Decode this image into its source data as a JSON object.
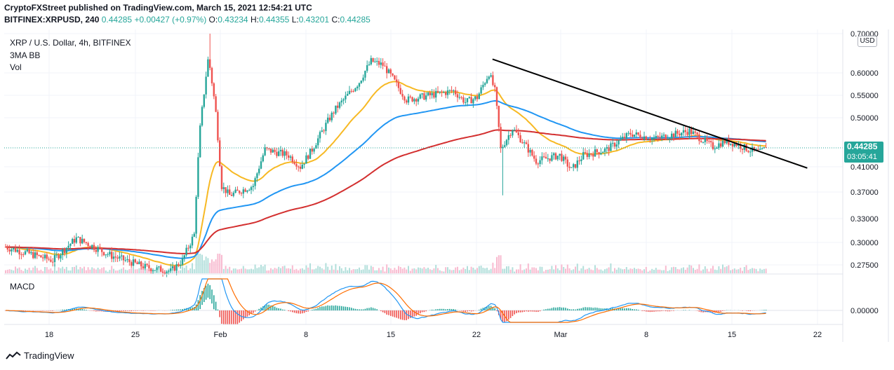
{
  "header": {
    "publisher_line": "CryptoFXStreet published on TradingView.com, March 15, 2021 12:54:21 UTC",
    "symbol": "BITFINEX:XRPUSD, 240",
    "last": "0.44285",
    "change": "+0.00427 (+0.97%)",
    "open_label": "O:",
    "open": "0.43234",
    "high_label": "H:",
    "high": "0.44355",
    "low_label": "L:",
    "low": "0.43201",
    "close_label": "C:",
    "close": "0.44285"
  },
  "legend": {
    "instrument": "XRP / U.S. Dollar, 4h, BITFINEX",
    "indicator": "3MA BB",
    "volume": "Vol",
    "macd": "MACD"
  },
  "price_axis": {
    "currency": "USD",
    "current_price": "0.44285",
    "countdown": "03:05:41"
  },
  "footer": {
    "brand": "TradingView"
  },
  "colors": {
    "up": "#26a69a",
    "down": "#ef5350",
    "ma_fast": "#f7b924",
    "ma_mid": "#2196f3",
    "ma_slow": "#d32f2f",
    "trendline": "#000000",
    "macd_line": "#2196f3",
    "signal_line": "#ff6d00"
  },
  "chart_data": {
    "type": "candlestick",
    "symbol": "XRPUSD",
    "timeframe": "4h",
    "x_ticks": [
      "18",
      "25",
      "Feb",
      "8",
      "15",
      "22",
      "Mar",
      "8",
      "15",
      "22"
    ],
    "y_ticks": [
      "0.70000",
      "0.60000",
      "0.55000",
      "0.50000",
      "0.41000",
      "0.37000",
      "0.33000",
      "0.30000",
      "0.27500"
    ],
    "ylim": [
      0.26,
      0.7
    ],
    "macd_ticks": [
      "0.00000"
    ],
    "close_path": [
      {
        "day": 0,
        "price": 0.295
      },
      {
        "day": 4,
        "price": 0.28
      },
      {
        "day": 6,
        "price": 0.305
      },
      {
        "day": 9,
        "price": 0.285
      },
      {
        "day": 12,
        "price": 0.272
      },
      {
        "day": 14,
        "price": 0.268
      },
      {
        "day": 15,
        "price": 0.28
      },
      {
        "day": 16,
        "price": 0.31
      },
      {
        "day": 16.5,
        "price": 0.48
      },
      {
        "day": 17.2,
        "price": 0.64
      },
      {
        "day": 17.8,
        "price": 0.52
      },
      {
        "day": 18.3,
        "price": 0.38
      },
      {
        "day": 19,
        "price": 0.365
      },
      {
        "day": 21,
        "price": 0.38
      },
      {
        "day": 22,
        "price": 0.44
      },
      {
        "day": 24,
        "price": 0.43
      },
      {
        "day": 25,
        "price": 0.41
      },
      {
        "day": 26,
        "price": 0.44
      },
      {
        "day": 28,
        "price": 0.52
      },
      {
        "day": 30,
        "price": 0.58
      },
      {
        "day": 31,
        "price": 0.63
      },
      {
        "day": 32,
        "price": 0.62
      },
      {
        "day": 33,
        "price": 0.58
      },
      {
        "day": 34,
        "price": 0.54
      },
      {
        "day": 36,
        "price": 0.55
      },
      {
        "day": 38,
        "price": 0.56
      },
      {
        "day": 39,
        "price": 0.535
      },
      {
        "day": 40,
        "price": 0.545
      },
      {
        "day": 41,
        "price": 0.6
      },
      {
        "day": 41.5,
        "price": 0.56
      },
      {
        "day": 42,
        "price": 0.44
      },
      {
        "day": 43,
        "price": 0.48
      },
      {
        "day": 44,
        "price": 0.45
      },
      {
        "day": 45,
        "price": 0.42
      },
      {
        "day": 47,
        "price": 0.43
      },
      {
        "day": 48,
        "price": 0.405
      },
      {
        "day": 49,
        "price": 0.43
      },
      {
        "day": 51,
        "price": 0.44
      },
      {
        "day": 53,
        "price": 0.47
      },
      {
        "day": 55,
        "price": 0.46
      },
      {
        "day": 57,
        "price": 0.47
      },
      {
        "day": 58,
        "price": 0.475
      },
      {
        "day": 59,
        "price": 0.46
      },
      {
        "day": 60,
        "price": 0.445
      },
      {
        "day": 61,
        "price": 0.455
      },
      {
        "day": 62,
        "price": 0.45
      },
      {
        "day": 63,
        "price": 0.44
      },
      {
        "day": 64,
        "price": 0.435
      },
      {
        "day": 64.5,
        "price": 0.443
      }
    ],
    "spike_high": {
      "day": 17.3,
      "price": 0.7
    },
    "spike_low": {
      "day": 42.2,
      "price": 0.365
    },
    "trendline": [
      {
        "day": 41.3,
        "price": 0.635
      },
      {
        "day": 68,
        "price": 0.408
      }
    ]
  }
}
